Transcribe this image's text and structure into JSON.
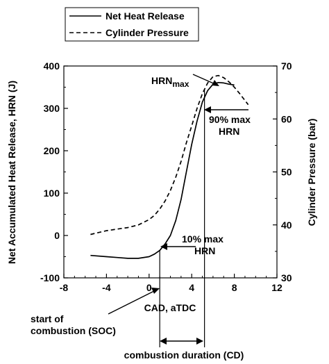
{
  "chart_data": {
    "type": "line",
    "title": "",
    "legend": {
      "placement": "top-center",
      "entries": [
        {
          "label": "Net Heat Release",
          "style": "solid"
        },
        {
          "label": "Cylinder Pressure",
          "style": "dashed"
        }
      ]
    },
    "xlabel": "CAD, aTDC",
    "ylabel": "Net Accumulated Heat Release, HRN (J)",
    "y2label": "Cylinder Pressure (bar)",
    "xlim": [
      -8,
      12
    ],
    "ylim": [
      -100,
      400
    ],
    "y2lim": [
      30,
      70
    ],
    "xticks": [
      -8,
      -4,
      0,
      4,
      8,
      12
    ],
    "yticks": [
      -100,
      0,
      100,
      200,
      300,
      400
    ],
    "y2ticks": [
      30,
      40,
      50,
      60,
      70
    ],
    "grid": false,
    "series": [
      {
        "name": "Net Heat Release",
        "axis": "left",
        "x": [
          -5.5,
          -4,
          -3,
          -2,
          -1,
          0,
          0.5,
          1,
          1.5,
          2,
          2.5,
          3,
          3.5,
          4,
          4.5,
          5,
          5.5,
          6,
          6.5,
          7,
          7.5,
          8
        ],
        "y": [
          -47,
          -50,
          -52,
          -54,
          -54,
          -50,
          -44,
          -35,
          -20,
          0,
          35,
          85,
          150,
          215,
          270,
          315,
          342,
          357,
          361,
          360,
          357,
          355
        ]
      },
      {
        "name": "Cylinder Pressure",
        "axis": "right",
        "x": [
          -5.5,
          -4,
          -3,
          -2,
          -1,
          0,
          0.5,
          1,
          1.5,
          2,
          2.5,
          3,
          3.5,
          4,
          4.5,
          5,
          5.5,
          6,
          6.5,
          7,
          7.5,
          8,
          8.5,
          9,
          9.3
        ],
        "y": [
          38.2,
          38.9,
          39.2,
          39.5,
          40.0,
          41.0,
          41.8,
          43.0,
          44.5,
          46.5,
          49.0,
          52.0,
          55.5,
          58.7,
          62.0,
          64.8,
          66.8,
          68.0,
          68.2,
          67.8,
          67.0,
          66.0,
          64.8,
          63.5,
          62.7
        ]
      }
    ],
    "annotations": [
      {
        "text": "HRN",
        "sub": "max"
      },
      {
        "text": "90% max",
        "text2": "HRN"
      },
      {
        "text": "10% max",
        "text2": "HRN"
      },
      {
        "text": "start of",
        "text2": "combustion (SOC)"
      },
      {
        "text": "combustion duration (CD)"
      }
    ],
    "markers": {
      "soc_x": 1,
      "hrn90_x": 5.2
    }
  }
}
